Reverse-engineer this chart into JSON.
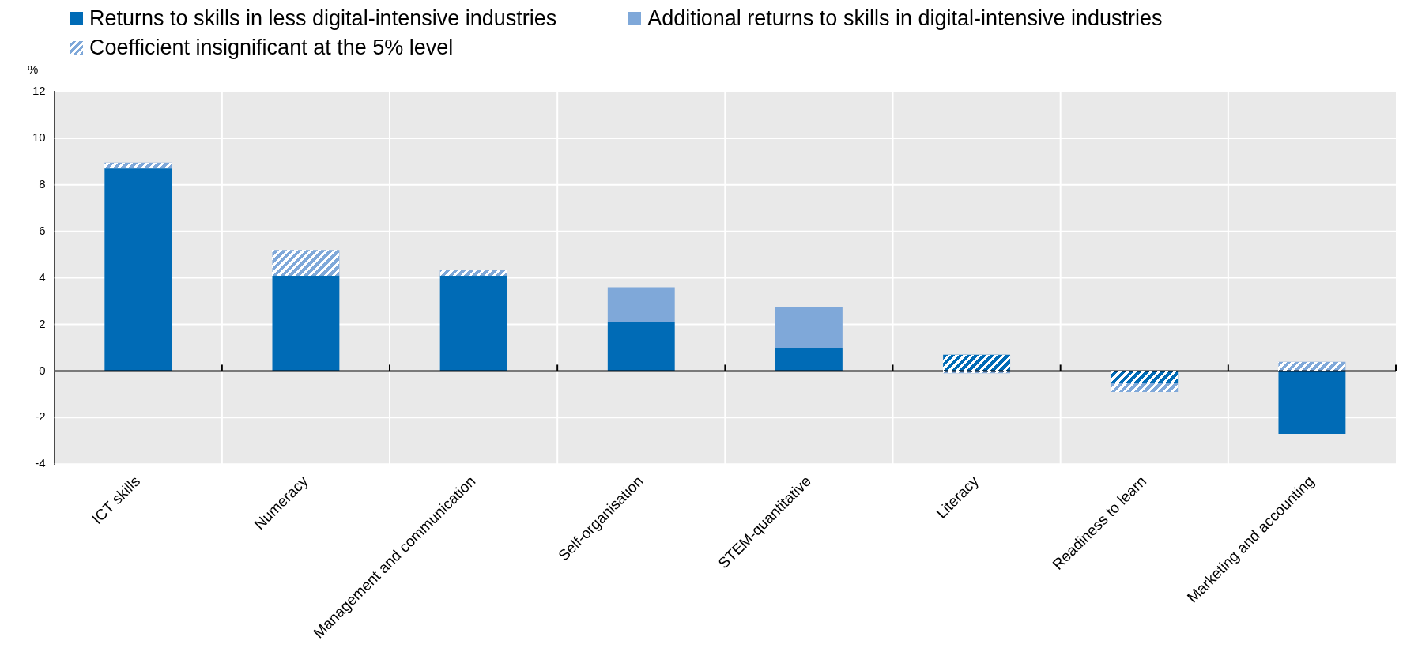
{
  "chart_data": {
    "type": "bar",
    "stacked": true,
    "ylabel": "%",
    "categories": [
      "ICT skills",
      "Numeracy",
      "Management and communication",
      "Self-organisation",
      "STEM-quantitative",
      "Literacy",
      "Readiness to learn",
      "Marketing and accounting"
    ],
    "series": [
      {
        "name": "Returns to skills in less digital-intensive industries",
        "color": "#006bb6",
        "values": [
          8.7,
          4.1,
          4.1,
          2.1,
          1.0,
          null,
          null,
          -2.7
        ]
      },
      {
        "color": "#006bb6",
        "line_style": "dashed",
        "values": [
          null,
          null,
          null,
          null,
          null,
          0.7,
          -0.5,
          null
        ]
      },
      {
        "name": "Additional returns to skills in digital-intensive industries",
        "color": "#7fa8d9",
        "values": [
          null,
          null,
          null,
          1.5,
          1.75,
          null,
          null,
          null
        ]
      },
      {
        "name": "Coefficient insignificant at the 5% level",
        "color": "#7fa8d9",
        "line_style": "dashed",
        "values": [
          0.25,
          1.1,
          0.25,
          null,
          null,
          -0.1,
          -0.4,
          0.4
        ]
      }
    ],
    "ylim": [
      -4,
      12
    ],
    "yticks": [
      -4,
      -2,
      0,
      2,
      4,
      6,
      8,
      10,
      12
    ],
    "grid": true,
    "legend": "top"
  }
}
